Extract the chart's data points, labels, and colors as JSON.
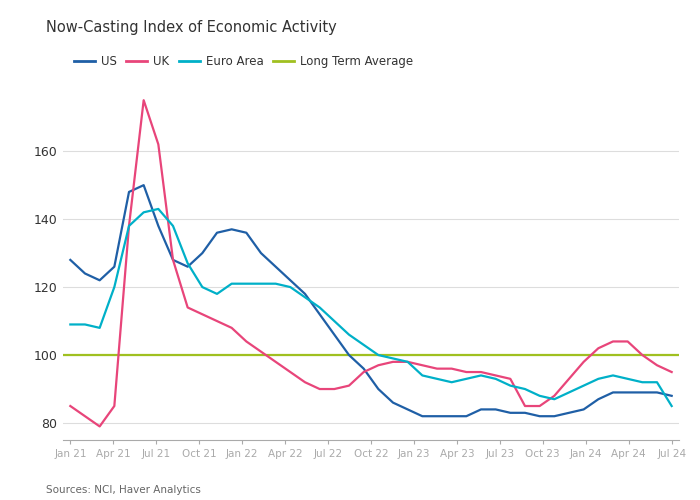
{
  "title": "Now-Casting Index of Economic Activity",
  "source": "Sources: NCI, Haver Analytics",
  "long_term_average": 100,
  "bg_color": "#ffffff",
  "text_color": "#333333",
  "axis_color": "#999999",
  "grid_color": "#dddddd",
  "colors": {
    "US": "#1f5fa6",
    "UK": "#e8457a",
    "Euro Area": "#00b0c8",
    "Long Term Average": "#a0c020"
  },
  "ylim": [
    75,
    178
  ],
  "yticks": [
    80,
    100,
    120,
    140,
    160
  ],
  "x_labels": [
    "Jan 21",
    "Apr 21",
    "Jul 21",
    "Oct 21",
    "Jan 22",
    "Apr 22",
    "Jul 22",
    "Oct 22",
    "Jan 23",
    "Apr 23",
    "Jul 23",
    "Oct 23",
    "Jan 24",
    "Apr 24",
    "Jul 24"
  ],
  "US": [
    128,
    124,
    122,
    126,
    148,
    150,
    138,
    128,
    126,
    130,
    136,
    137,
    136,
    130,
    126,
    122,
    118,
    112,
    106,
    100,
    96,
    90,
    86,
    84,
    82,
    82,
    82,
    82,
    84,
    84,
    83,
    83,
    82,
    82,
    83,
    84,
    87,
    89,
    89,
    89,
    89,
    88
  ],
  "UK": [
    85,
    82,
    79,
    85,
    138,
    175,
    162,
    128,
    114,
    112,
    110,
    108,
    104,
    101,
    98,
    95,
    92,
    90,
    90,
    91,
    95,
    97,
    98,
    98,
    97,
    96,
    96,
    95,
    95,
    94,
    93,
    85,
    85,
    88,
    93,
    98,
    102,
    104,
    104,
    100,
    97,
    95
  ],
  "Euro Area": [
    109,
    109,
    108,
    120,
    138,
    142,
    143,
    138,
    127,
    120,
    118,
    121,
    121,
    121,
    121,
    120,
    117,
    114,
    110,
    106,
    103,
    100,
    99,
    98,
    94,
    93,
    92,
    93,
    94,
    93,
    91,
    90,
    88,
    87,
    89,
    91,
    93,
    94,
    93,
    92,
    92,
    85
  ]
}
